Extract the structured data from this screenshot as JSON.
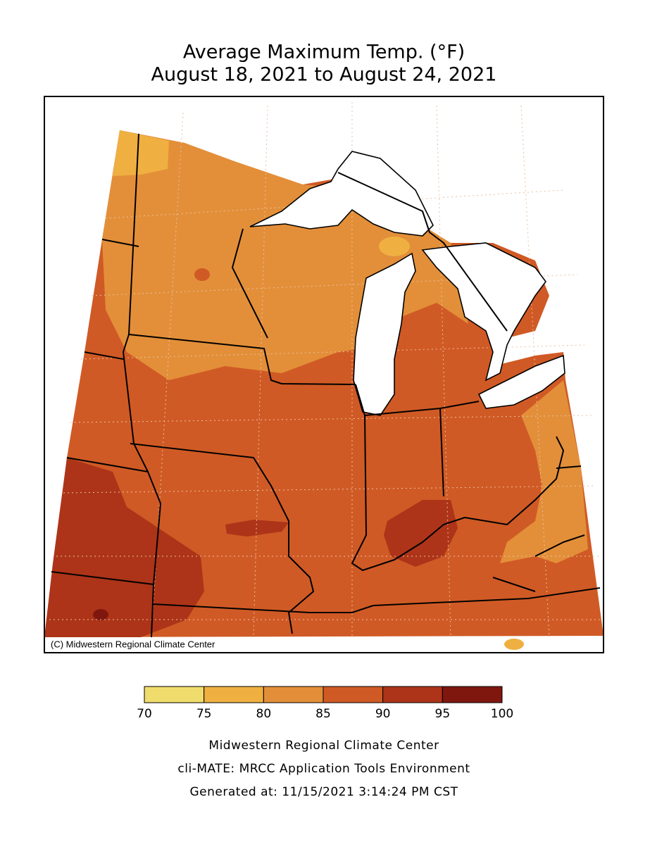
{
  "title": [
    "Average Maximum Temp. (°F)",
    "August 18, 2021 to August 24, 2021"
  ],
  "copyright": "(C) Midwestern Regional Climate Center",
  "legend": {
    "bins": [
      70,
      75,
      80,
      85,
      90,
      95,
      100
    ],
    "colors": [
      "#efdc6c",
      "#efb041",
      "#e38f39",
      "#d05a25",
      "#ad3418",
      "#80170f"
    ]
  },
  "footer": [
    "Midwestern Regional Climate Center",
    "cli-MATE: MRCC Application Tools Environment",
    "Generated at: 11/15/2021 3:14:24 PM CST"
  ]
}
